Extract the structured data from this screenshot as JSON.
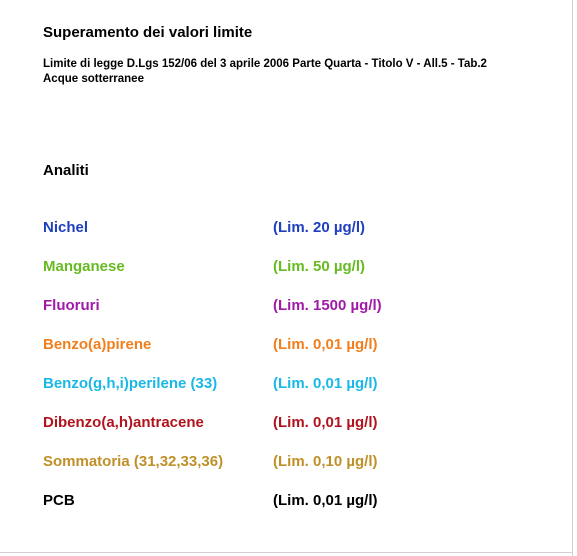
{
  "header": {
    "title": "Superamento dei valori limite",
    "subtitle_line1": "Limite di legge D.Lgs 152/06 del 3 aprile 2006 Parte Quarta - Titolo V - All.5 - Tab.2",
    "subtitle_line2": "Acque sotterranee"
  },
  "section": {
    "title": "Analiti"
  },
  "analytes": [
    {
      "name": "Nichel",
      "limit": "(Lim. 20 µg/l)",
      "color": "#1f3fbf"
    },
    {
      "name": "Manganese",
      "limit": "(Lim. 50 µg/l)",
      "color": "#66bb22"
    },
    {
      "name": "Fluoruri",
      "limit": "(Lim. 1500 µg/l)",
      "color": "#a01aa8"
    },
    {
      "name": "Benzo(a)pirene",
      "limit": "(Lim. 0,01 µg/l)",
      "color": "#f07f1e"
    },
    {
      "name": "Benzo(g,h,i)perilene (33)",
      "limit": "(Lim. 0,01 µg/l)",
      "color": "#1ab8e6"
    },
    {
      "name": "Dibenzo(a,h)antracene",
      "limit": "(Lim. 0,01 µg/l)",
      "color": "#b0141e"
    },
    {
      "name": "Sommatoria (31,32,33,36)",
      "limit": "(Lim. 0,10 µg/l)",
      "color": "#c09028"
    },
    {
      "name": "PCB",
      "limit": "(Lim. 0,01 µg/l)",
      "color": "#000000"
    }
  ]
}
